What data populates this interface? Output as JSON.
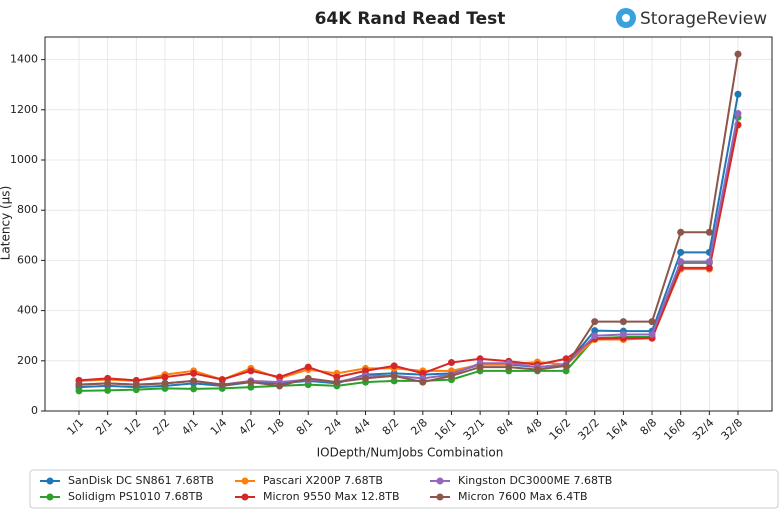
{
  "brand": "StorageReview",
  "chart_data": {
    "type": "line",
    "title": "64K Rand Read Test",
    "x_label": "IODepth/NumJobs Combination",
    "y_label": "Latency (µs)",
    "categories": [
      "1/1",
      "2/1",
      "1/2",
      "2/2",
      "4/1",
      "1/4",
      "4/2",
      "1/8",
      "8/1",
      "2/4",
      "4/4",
      "8/2",
      "2/8",
      "16/1",
      "32/1",
      "8/4",
      "4/8",
      "16/2",
      "32/2",
      "16/4",
      "8/8",
      "16/8",
      "32/4",
      "32/8"
    ],
    "series": [
      {
        "name": "SanDisk DC SN861 7.68TB",
        "color": "#1f77b4",
        "values": [
          95,
          100,
          95,
          100,
          110,
          100,
          115,
          110,
          120,
          110,
          145,
          150,
          145,
          150,
          185,
          185,
          175,
          185,
          320,
          318,
          318,
          632,
          632,
          1262
        ]
      },
      {
        "name": "Solidigm PS1010 7.68TB",
        "color": "#2ca02c",
        "values": [
          80,
          82,
          85,
          90,
          88,
          90,
          95,
          100,
          105,
          100,
          115,
          120,
          120,
          125,
          160,
          160,
          160,
          160,
          290,
          295,
          295,
          590,
          590,
          1170
        ]
      },
      {
        "name": "Pascari X200P 7.68TB",
        "color": "#ff7f0e",
        "values": [
          120,
          125,
          120,
          145,
          160,
          125,
          170,
          130,
          165,
          150,
          170,
          170,
          160,
          160,
          185,
          185,
          195,
          185,
          285,
          285,
          290,
          565,
          565,
          1140
        ]
      },
      {
        "name": "Micron 9550 Max 12.8TB",
        "color": "#d62728",
        "values": [
          122,
          130,
          122,
          135,
          150,
          125,
          160,
          135,
          175,
          135,
          160,
          180,
          150,
          193,
          208,
          198,
          185,
          208,
          288,
          290,
          290,
          570,
          570,
          1140
        ]
      },
      {
        "name": "Kingston DC3000ME 7.68TB",
        "color": "#9467bd",
        "values": [
          105,
          110,
          105,
          110,
          120,
          105,
          120,
          115,
          125,
          115,
          140,
          140,
          130,
          145,
          190,
          190,
          175,
          185,
          300,
          305,
          305,
          595,
          595,
          1185
        ]
      },
      {
        "name": "Micron 7600 Max 6.4TB",
        "color": "#8c564b",
        "values": [
          105,
          110,
          105,
          110,
          120,
          105,
          115,
          100,
          130,
          115,
          130,
          140,
          115,
          140,
          175,
          175,
          165,
          180,
          356,
          356,
          356,
          712,
          712,
          1422
        ]
      }
    ],
    "ylim": [
      0,
      1490
    ],
    "yticks": [
      0,
      200,
      400,
      600,
      800,
      1000,
      1200,
      1400
    ],
    "grid": true
  }
}
